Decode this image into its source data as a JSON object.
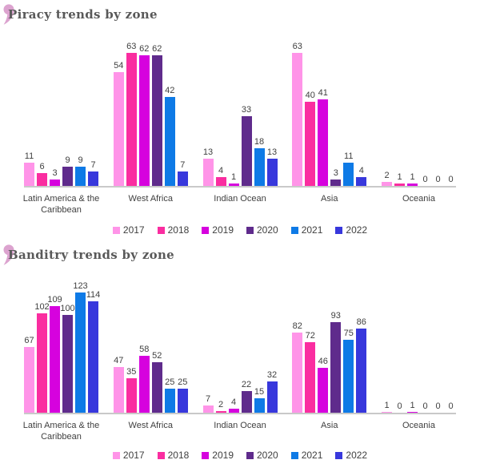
{
  "palette": {
    "title_gray": "#595959",
    "label_gray": "#3f3f3f",
    "axis_gray": "#c9c9c9",
    "decoration_pink": "#dca3cf"
  },
  "chart_data": [
    {
      "type": "bar",
      "title": "Piracy trends by zone",
      "categories": [
        "Latin America & the Caribbean",
        "West Africa",
        "Indian Ocean",
        "Asia",
        "Oceania"
      ],
      "series": [
        {
          "name": "2017",
          "color": "#ff94e8",
          "values": [
            11,
            54,
            13,
            63,
            2
          ]
        },
        {
          "name": "2018",
          "color": "#fa2da0",
          "values": [
            6,
            63,
            4,
            40,
            1
          ]
        },
        {
          "name": "2019",
          "color": "#d602de",
          "values": [
            3,
            62,
            1,
            41,
            1
          ]
        },
        {
          "name": "2020",
          "color": "#5f2b8c",
          "values": [
            9,
            62,
            33,
            3,
            0
          ]
        },
        {
          "name": "2021",
          "color": "#0e7ae6",
          "values": [
            9,
            42,
            18,
            11,
            0
          ]
        },
        {
          "name": "2022",
          "color": "#3838dc",
          "values": [
            7,
            7,
            13,
            4,
            0
          ]
        }
      ],
      "ylim": [
        0,
        63
      ],
      "grid": false,
      "value_labels": true,
      "legend_position": "bottom"
    },
    {
      "type": "bar",
      "title": "Banditry trends by zone",
      "categories": [
        "Latin America & the Caribbean",
        "West Africa",
        "Indian Ocean",
        "Asia",
        "Oceania"
      ],
      "series": [
        {
          "name": "2017",
          "color": "#ff94e8",
          "values": [
            67,
            47,
            7,
            82,
            1
          ]
        },
        {
          "name": "2018",
          "color": "#fa2da0",
          "values": [
            102,
            35,
            2,
            72,
            0
          ]
        },
        {
          "name": "2019",
          "color": "#d602de",
          "values": [
            109,
            58,
            4,
            46,
            1
          ]
        },
        {
          "name": "2020",
          "color": "#5f2b8c",
          "values": [
            100,
            52,
            22,
            93,
            0
          ]
        },
        {
          "name": "2021",
          "color": "#0e7ae6",
          "values": [
            123,
            25,
            15,
            75,
            0
          ]
        },
        {
          "name": "2022",
          "color": "#3838dc",
          "values": [
            114,
            25,
            32,
            86,
            0
          ]
        }
      ],
      "ylim": [
        0,
        123
      ],
      "grid": false,
      "value_labels": true,
      "legend_position": "bottom"
    }
  ]
}
